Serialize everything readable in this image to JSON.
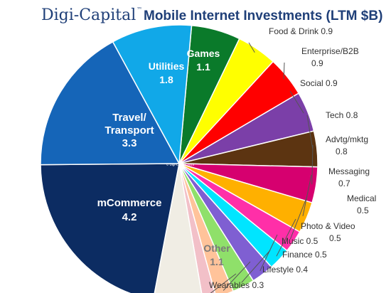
{
  "chart_data": {
    "type": "pie",
    "title_brand": "Digi-Capital",
    "title_tm": "™",
    "title": "Mobile Internet Investments (LTM $B)",
    "watermark": "© Digi-Capital 2014",
    "slices": [
      {
        "name": "Games",
        "value": 1.1,
        "color": "#0a7a2a"
      },
      {
        "name": "Food & Drink",
        "value": 0.9,
        "color": "#ffff00"
      },
      {
        "name": "Enterprise/B2B",
        "value": 0.9,
        "color": "#ff0000"
      },
      {
        "name": "Social",
        "value": 0.9,
        "color": "#7b3fa8"
      },
      {
        "name": "Tech",
        "value": 0.8,
        "color": "#5c3411"
      },
      {
        "name": "Advtg/mktg",
        "value": 0.8,
        "color": "#d6006f"
      },
      {
        "name": "Messaging",
        "value": 0.7,
        "color": "#ffb000"
      },
      {
        "name": "Medical",
        "value": 0.5,
        "color": "#ff2fa8"
      },
      {
        "name": "Photo & Video",
        "value": 0.5,
        "color": "#00e5ff"
      },
      {
        "name": "Music",
        "value": 0.5,
        "color": "#7f5fd2"
      },
      {
        "name": "Finance",
        "value": 0.5,
        "color": "#8fe06a"
      },
      {
        "name": "Lifestyle",
        "value": 0.4,
        "color": "#ffc39a"
      },
      {
        "name": "Wearables",
        "value": 0.3,
        "color": "#f2c0c8"
      },
      {
        "name": "Other",
        "value": 1.1,
        "color": "#f0ede4"
      },
      {
        "name": "mCommerce",
        "value": 4.2,
        "color": "#0c2c62"
      },
      {
        "name": "Travel/ Transport",
        "value": 3.3,
        "color": "#1565b8"
      },
      {
        "name": "Utilities",
        "value": 1.8,
        "color": "#11a8e8"
      }
    ],
    "legend": "none"
  }
}
